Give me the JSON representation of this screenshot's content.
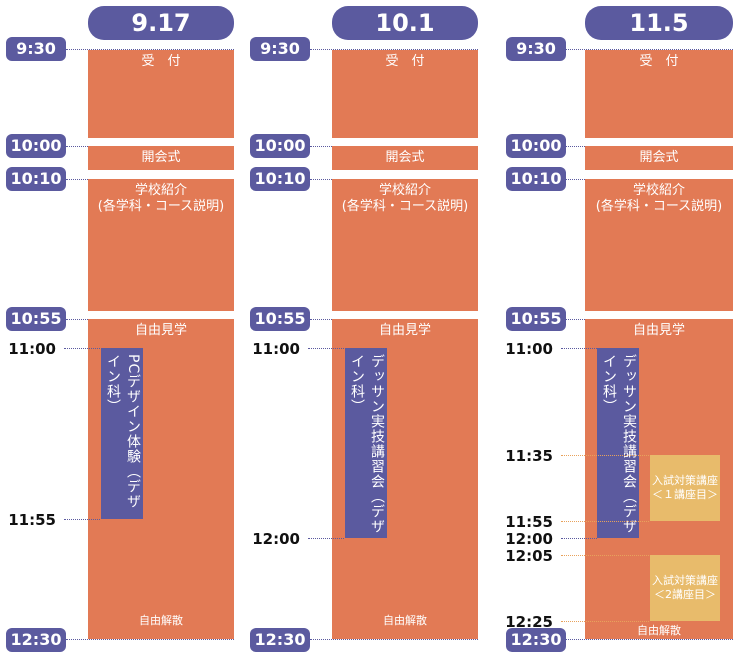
{
  "colors": {
    "purple": "#5b5a9f",
    "orange": "#e27a55",
    "yellow": "#e8bb6b"
  },
  "columns": [
    {
      "date": "9.17",
      "times": {
        "t0930": "9:30",
        "t1000": "10:00",
        "t1010": "10:10",
        "t1055": "10:55",
        "t1230": "12:30"
      },
      "blocks": {
        "reception": "受　付",
        "opening": "開会式",
        "intro_line1": "学校紹介",
        "intro_line2": "(各学科・コース説明)",
        "free_visit": "自由見学",
        "dismissal": "自由解散"
      },
      "session": {
        "title": "PCデザイン体験（デザイン科）",
        "start": "11:00",
        "end": "11:55"
      }
    },
    {
      "date": "10.1",
      "times": {
        "t0930": "9:30",
        "t1000": "10:00",
        "t1010": "10:10",
        "t1055": "10:55",
        "t1230": "12:30"
      },
      "blocks": {
        "reception": "受　付",
        "opening": "開会式",
        "intro_line1": "学校紹介",
        "intro_line2": "(各学科・コース説明)",
        "free_visit": "自由見学",
        "dismissal": "自由解散"
      },
      "session": {
        "title": "デッサン実技講習会（デザイン科）",
        "start": "11:00",
        "end": "12:00"
      }
    },
    {
      "date": "11.5",
      "times": {
        "t0930": "9:30",
        "t1000": "10:00",
        "t1010": "10:10",
        "t1055": "10:55",
        "t1230": "12:30"
      },
      "blocks": {
        "reception": "受　付",
        "opening": "開会式",
        "intro_line1": "学校紹介",
        "intro_line2": "(各学科・コース説明)",
        "free_visit": "自由見学",
        "dismissal": "自由解散"
      },
      "session": {
        "title": "デッサン実技講習会（デザイン科）",
        "start": "11:00",
        "t1135": "11:35",
        "t1155": "11:55",
        "end": "12:00",
        "t1205": "12:05",
        "t1225": "12:25"
      },
      "exam1": {
        "line1": "入試対策講座",
        "line2": "＜１講座目＞"
      },
      "exam2": {
        "line1": "入試対策講座",
        "line2": "＜2講座目＞"
      }
    }
  ]
}
